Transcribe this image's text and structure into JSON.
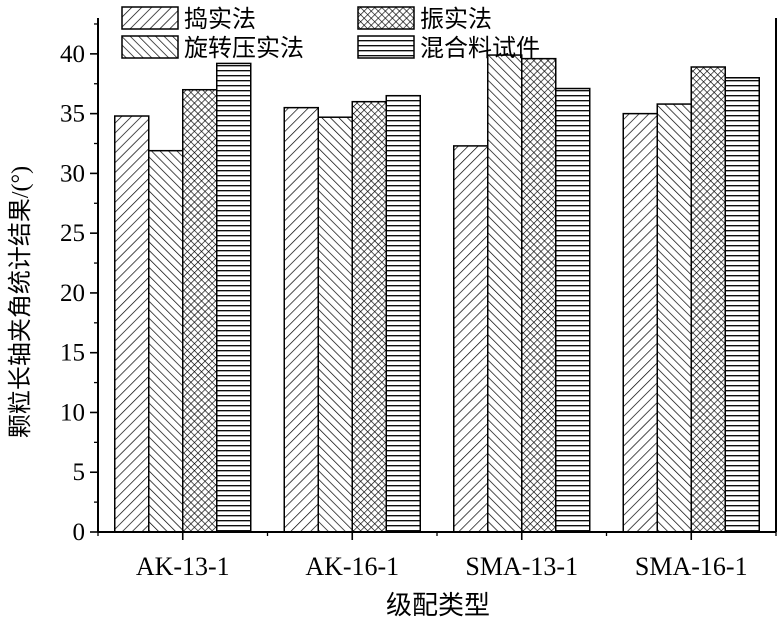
{
  "chart_data": {
    "type": "bar",
    "title": "",
    "xlabel": "级配类型",
    "ylabel": "颗粒长轴夹角统计结果/(°)",
    "ylim": [
      0,
      43
    ],
    "yticks": [
      0,
      5,
      10,
      15,
      20,
      25,
      30,
      35,
      40
    ],
    "categories": [
      "AK-13-1",
      "AK-16-1",
      "SMA-13-1",
      "SMA-16-1"
    ],
    "series": [
      {
        "name": "捣实法",
        "pattern": "diag-right",
        "values": [
          34.8,
          35.5,
          32.3,
          35.0
        ]
      },
      {
        "name": "旋转压实法",
        "pattern": "diag-left",
        "values": [
          31.9,
          34.7,
          39.9,
          35.8
        ]
      },
      {
        "name": "振实法",
        "pattern": "crosshatch",
        "values": [
          37.0,
          36.0,
          39.6,
          38.9
        ]
      },
      {
        "name": "混合料试件",
        "pattern": "horizontal",
        "values": [
          39.2,
          36.5,
          37.1,
          38.0
        ]
      }
    ],
    "legend_order": [
      "捣实法",
      "振实法",
      "旋转压实法",
      "混合料试件"
    ],
    "legend_position": "top-left",
    "grid": false,
    "colors": {
      "fill": "#ffffff",
      "stroke": "#000000"
    }
  }
}
